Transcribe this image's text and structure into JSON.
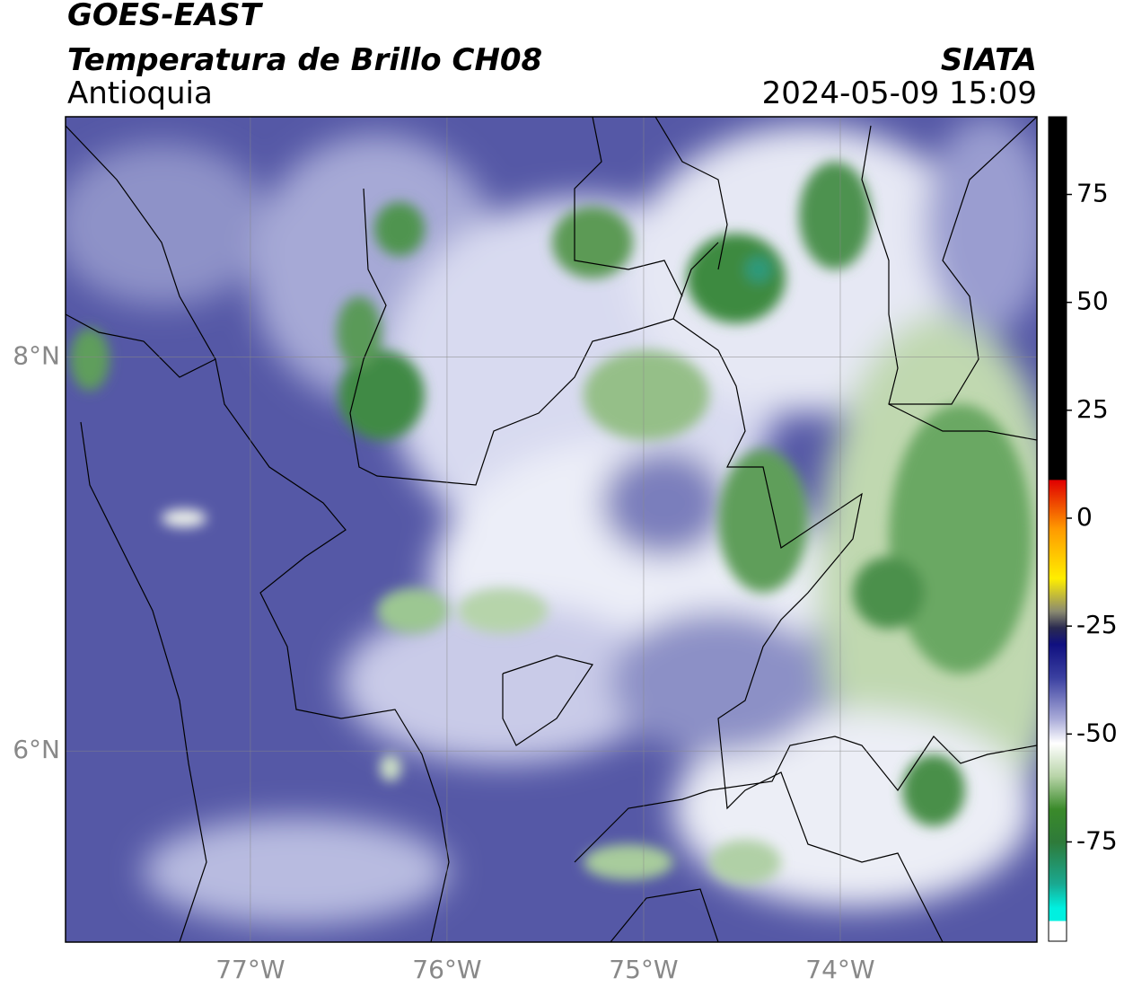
{
  "header": {
    "satellite": "GOES-EAST",
    "title": "Temperatura de Brillo CH08",
    "region": "Antioquia",
    "agency": "SIATA",
    "datetime": "2024-05-09 15:09"
  },
  "map": {
    "xlim": [
      -77.94,
      -73.0
    ],
    "ylim": [
      5.03,
      9.22
    ],
    "grid": true,
    "xticks": [
      {
        "value": -77,
        "label": "77°W"
      },
      {
        "value": -76,
        "label": "76°W"
      },
      {
        "value": -75,
        "label": "75°W"
      },
      {
        "value": -74,
        "label": "74°W"
      }
    ],
    "yticks": [
      {
        "value": 8,
        "label": "8°N"
      },
      {
        "value": 6,
        "label": "6°N"
      }
    ]
  },
  "colorbar": {
    "lim": [
      -98,
      93
    ],
    "ticks": [
      75,
      50,
      25,
      0,
      -25,
      -50,
      -75
    ]
  }
}
